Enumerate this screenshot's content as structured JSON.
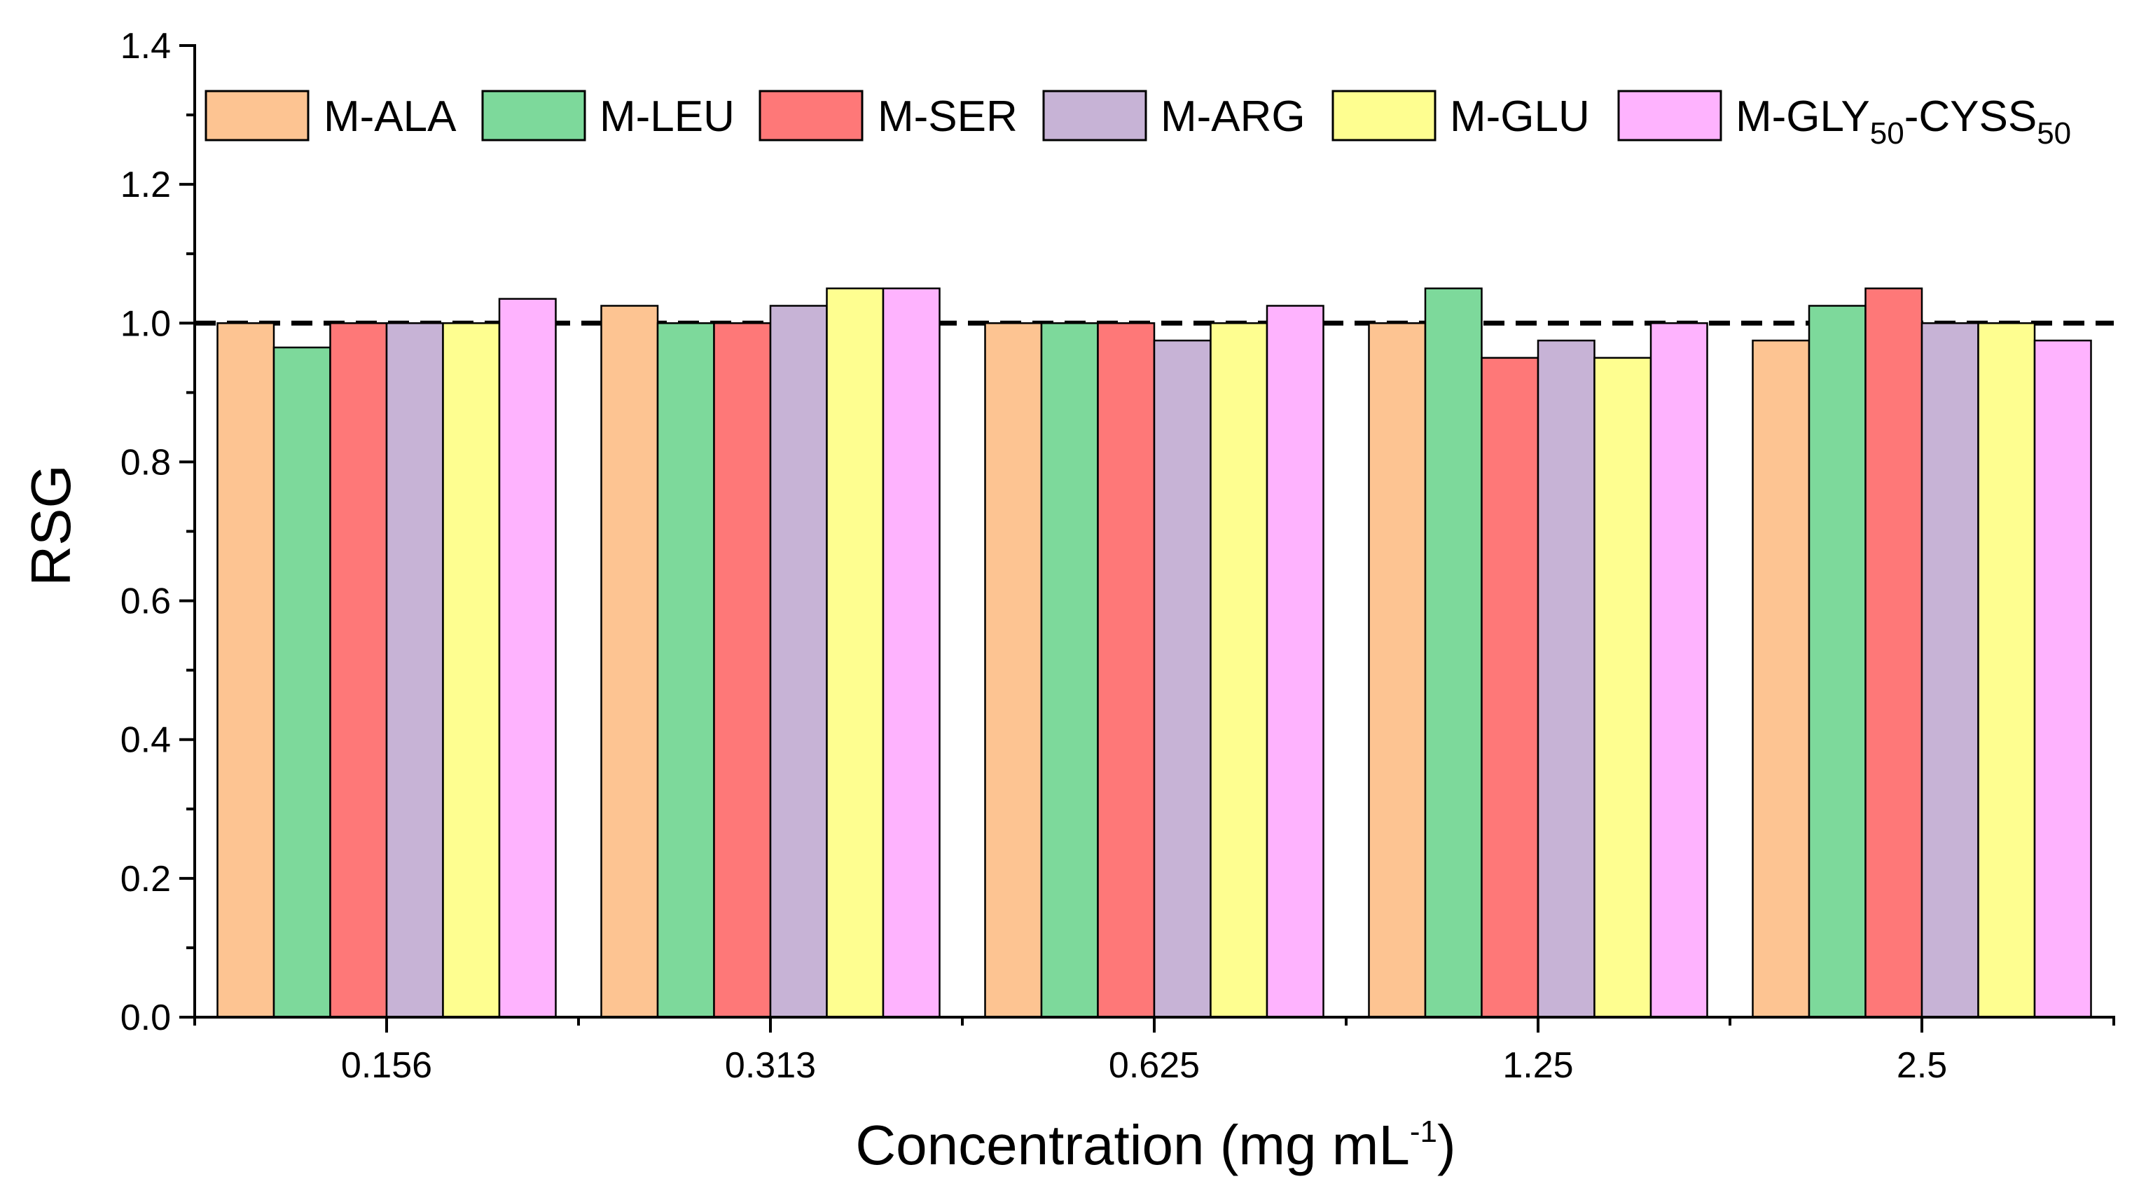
{
  "chart_data": {
    "type": "bar",
    "title": "",
    "xlabel": "Concentration (mg mL",
    "xlabel_superscript": "-1",
    "xlabel_suffix": ")",
    "ylabel": "RSG",
    "ylim": [
      0,
      1.4
    ],
    "yticks": [
      "0.0",
      "0.2",
      "0.4",
      "0.6",
      "0.8",
      "1.0",
      "1.2",
      "1.4"
    ],
    "reference_line": 1.0,
    "legend_position": "top",
    "categories": [
      "0.156",
      "0.313",
      "0.625",
      "1.25",
      "2.5"
    ],
    "series": [
      {
        "name": "M-ALA",
        "color": "#FDC492",
        "values": [
          1.0,
          1.025,
          1.0,
          1.0,
          0.975
        ]
      },
      {
        "name": "M-LEU",
        "color": "#7DD99B",
        "values": [
          0.965,
          1.0,
          1.0,
          1.05,
          1.025
        ]
      },
      {
        "name": "M-SER",
        "color": "#FE7878",
        "values": [
          1.0,
          1.0,
          1.0,
          0.95,
          1.05
        ]
      },
      {
        "name": "M-ARG",
        "color": "#C7B3D6",
        "values": [
          1.0,
          1.025,
          0.975,
          0.975,
          1.0
        ]
      },
      {
        "name": "M-GLU",
        "color": "#FEFE90",
        "values": [
          1.0,
          1.05,
          1.0,
          0.95,
          1.0
        ]
      },
      {
        "name": "M-GLY50-CYSS50",
        "color": "#FEB3FE",
        "values": [
          1.035,
          1.05,
          1.025,
          1.0,
          0.975
        ],
        "label_parts": [
          "M-GLY",
          "50",
          "-CYSS",
          "50"
        ]
      }
    ]
  }
}
